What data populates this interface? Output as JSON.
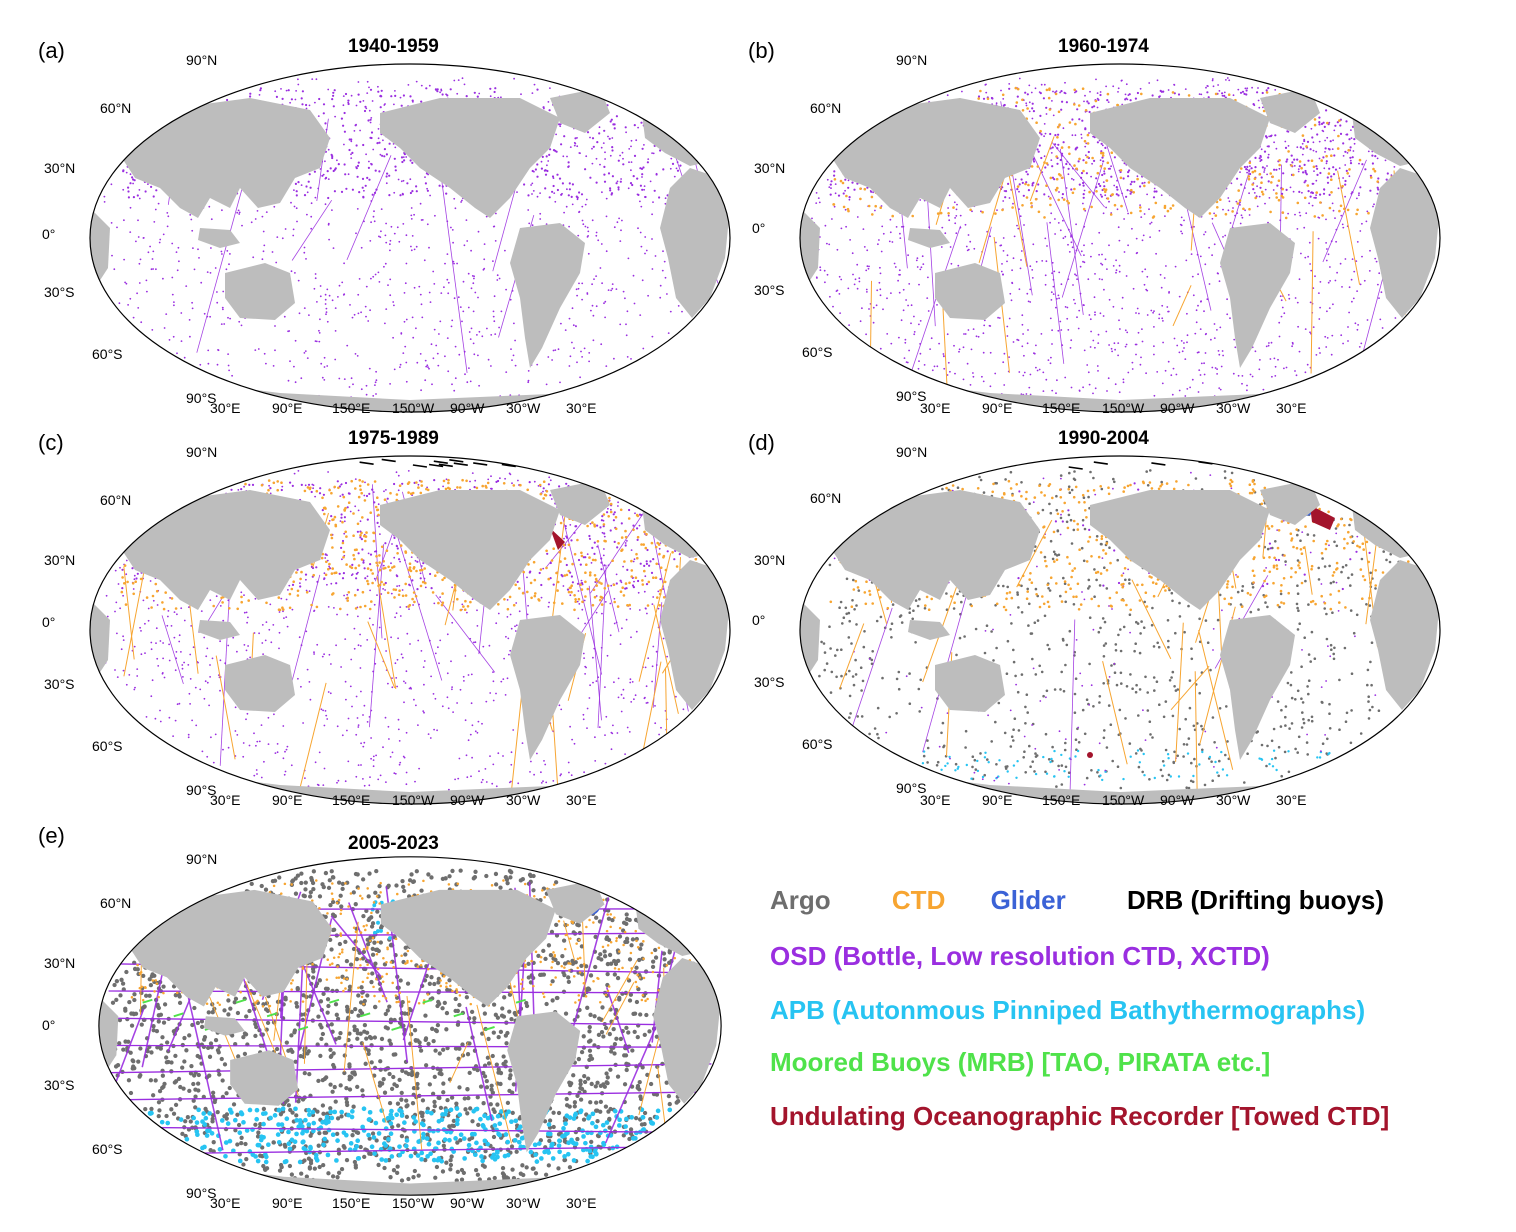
{
  "colors": {
    "argo": "#6e6e6e",
    "ctd": "#f7a531",
    "glider": "#3b62d6",
    "drb": "#000000",
    "osd": "#9a2ee0",
    "apb": "#27c4f2",
    "mrb": "#4fe24a",
    "uor": "#a3142c",
    "land": "#bdbdbd",
    "ocean": "#ffffff"
  },
  "lat_labels": [
    "90°N",
    "60°N",
    "30°N",
    "0°",
    "30°S",
    "60°S",
    "90°S"
  ],
  "lon_labels": [
    "30°E",
    "90°E",
    "150°E",
    "150°W",
    "90°W",
    "30°W",
    "30°E"
  ],
  "panels": [
    {
      "id": "a",
      "label": "(a)",
      "title": "1940-1959",
      "layers": [
        "osd"
      ]
    },
    {
      "id": "b",
      "label": "(b)",
      "title": "1960-1974",
      "layers": [
        "osd",
        "ctd"
      ]
    },
    {
      "id": "c",
      "label": "(c)",
      "title": "1975-1989",
      "layers": [
        "osd",
        "ctd",
        "drb",
        "uor"
      ]
    },
    {
      "id": "d",
      "label": "(d)",
      "title": "1990-2004",
      "layers": [
        "argo",
        "ctd",
        "osd",
        "apb",
        "glider",
        "uor",
        "drb"
      ]
    },
    {
      "id": "e",
      "label": "(e)",
      "title": "2005-2023",
      "layers": [
        "argo",
        "ctd",
        "osd",
        "apb",
        "mrb",
        "glider"
      ]
    }
  ],
  "legend": {
    "argo": "Argo",
    "ctd": "CTD",
    "glider": "Glider",
    "drb": "DRB (Drifting buoys)",
    "osd": "OSD (Bottle, Low resolution CTD, XCTD)",
    "apb": "APB (Autonmous Pinniped Bathythermographs)",
    "mrb": "Moored Buoys (MRB) [TAO, PIRATA etc.]",
    "uor": "Undulating Oceanographic Recorder [Towed CTD]"
  }
}
